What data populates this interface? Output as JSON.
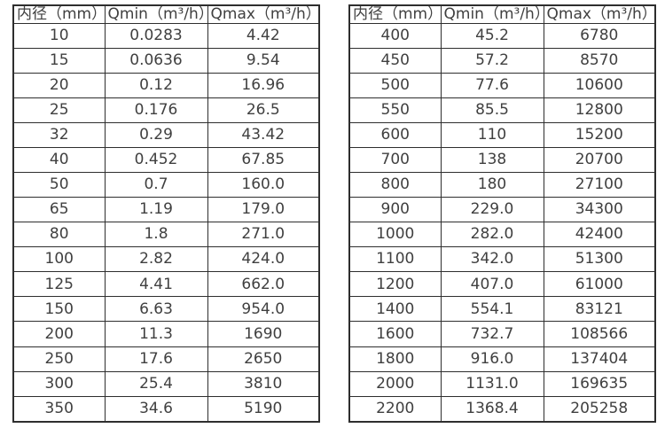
{
  "tables": [
    {
      "name": "small-diameters",
      "headers": [
        "内径（mm）",
        "Qmin（m³/h）",
        "Qmax（m³/h）"
      ],
      "rows": [
        [
          "10",
          "0.0283",
          "4.42"
        ],
        [
          "15",
          "0.0636",
          "9.54"
        ],
        [
          "20",
          "0.12",
          "16.96"
        ],
        [
          "25",
          "0.176",
          "26.5"
        ],
        [
          "32",
          "0.29",
          "43.42"
        ],
        [
          "40",
          "0.452",
          "67.85"
        ],
        [
          "50",
          "0.7",
          "160.0"
        ],
        [
          "65",
          "1.19",
          "179.0"
        ],
        [
          "80",
          "1.8",
          "271.0"
        ],
        [
          "100",
          "2.82",
          "424.0"
        ],
        [
          "125",
          "4.41",
          "662.0"
        ],
        [
          "150",
          "6.63",
          "954.0"
        ],
        [
          "200",
          "11.3",
          "1690"
        ],
        [
          "250",
          "17.6",
          "2650"
        ],
        [
          "300",
          "25.4",
          "3810"
        ],
        [
          "350",
          "34.6",
          "5190"
        ]
      ]
    },
    {
      "name": "large-diameters",
      "headers": [
        "内径（mm）",
        "Qmin（m³/h）",
        "Qmax（m³/h）"
      ],
      "rows": [
        [
          "400",
          "45.2",
          "6780"
        ],
        [
          "450",
          "57.2",
          "8570"
        ],
        [
          "500",
          "77.6",
          "10600"
        ],
        [
          "550",
          "85.5",
          "12800"
        ],
        [
          "600",
          "110",
          "15200"
        ],
        [
          "700",
          "138",
          "20700"
        ],
        [
          "800",
          "180",
          "27100"
        ],
        [
          "900",
          "229.0",
          "34300"
        ],
        [
          "1000",
          "282.0",
          "42400"
        ],
        [
          "1100",
          "342.0",
          "51300"
        ],
        [
          "1200",
          "407.0",
          "61000"
        ],
        [
          "1400",
          "554.1",
          "83121"
        ],
        [
          "1600",
          "732.7",
          "108566"
        ],
        [
          "1800",
          "916.0",
          "137404"
        ],
        [
          "2000",
          "1131.0",
          "169635"
        ],
        [
          "2200",
          "1368.4",
          "205258"
        ]
      ]
    }
  ],
  "colors": {
    "border": "#2e2e2e",
    "text": "#404040",
    "background": "#ffffff"
  }
}
